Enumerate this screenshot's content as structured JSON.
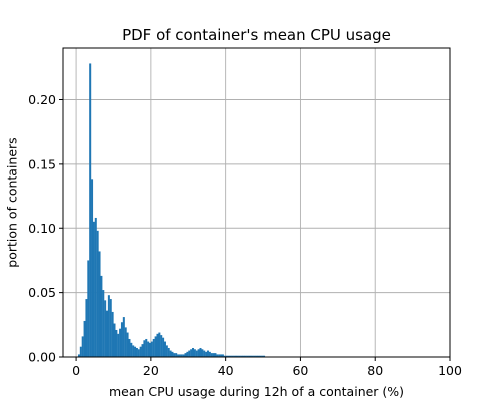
{
  "chart_data": {
    "type": "bar",
    "title": "PDF of container's mean CPU usage",
    "xlabel": "mean CPU usage during 12h of a container (%)",
    "ylabel": "portion of containers",
    "xlim": [
      -3.5,
      100
    ],
    "ylim": [
      0,
      0.24
    ],
    "xticks": [
      0,
      20,
      40,
      60,
      80,
      100
    ],
    "yticks": [
      0.0,
      0.05,
      0.1,
      0.15,
      0.2
    ],
    "xtick_labels": [
      "0",
      "20",
      "40",
      "60",
      "80",
      "100"
    ],
    "ytick_labels": [
      "0.00",
      "0.05",
      "0.10",
      "0.15",
      "0.20"
    ],
    "grid": true,
    "bar_color": "#1f77b4",
    "bin_width": 0.5,
    "x": [
      0.5,
      1.0,
      1.5,
      2.0,
      2.5,
      3.0,
      3.5,
      4.0,
      4.5,
      5.0,
      5.5,
      6.0,
      6.5,
      7.0,
      7.5,
      8.0,
      8.5,
      9.0,
      9.5,
      10.0,
      10.5,
      11.0,
      11.5,
      12.0,
      12.5,
      13.0,
      13.5,
      14.0,
      14.5,
      15.0,
      15.5,
      16.0,
      16.5,
      17.0,
      17.5,
      18.0,
      18.5,
      19.0,
      19.5,
      20.0,
      20.5,
      21.0,
      21.5,
      22.0,
      22.5,
      23.0,
      23.5,
      24.0,
      24.5,
      25.0,
      25.5,
      26.0,
      26.5,
      27.0,
      27.5,
      28.0,
      28.5,
      29.0,
      29.5,
      30.0,
      30.5,
      31.0,
      31.5,
      32.0,
      32.5,
      33.0,
      33.5,
      34.0,
      34.5,
      35.0,
      35.5,
      36.0,
      36.5,
      37.0,
      37.5,
      38.0,
      38.5,
      39.0,
      39.5,
      40.0,
      40.5,
      41.0,
      41.5,
      42.0,
      42.5,
      43.0,
      43.5,
      44.0,
      44.5,
      45.0,
      45.5,
      46.0,
      46.5,
      47.0,
      47.5,
      48.0,
      48.5,
      49.0,
      49.5,
      50.0
    ],
    "values": [
      0.002,
      0.008,
      0.016,
      0.028,
      0.045,
      0.075,
      0.228,
      0.138,
      0.105,
      0.108,
      0.098,
      0.082,
      0.063,
      0.052,
      0.044,
      0.036,
      0.048,
      0.045,
      0.035,
      0.026,
      0.021,
      0.018,
      0.022,
      0.027,
      0.031,
      0.023,
      0.019,
      0.014,
      0.011,
      0.009,
      0.008,
      0.007,
      0.006,
      0.008,
      0.01,
      0.013,
      0.014,
      0.012,
      0.011,
      0.012,
      0.014,
      0.016,
      0.018,
      0.019,
      0.017,
      0.015,
      0.012,
      0.009,
      0.007,
      0.005,
      0.004,
      0.003,
      0.003,
      0.002,
      0.002,
      0.002,
      0.002,
      0.003,
      0.004,
      0.005,
      0.006,
      0.007,
      0.006,
      0.005,
      0.006,
      0.007,
      0.006,
      0.005,
      0.004,
      0.005,
      0.004,
      0.003,
      0.003,
      0.003,
      0.002,
      0.002,
      0.002,
      0.002,
      0.001,
      0.001,
      0.001,
      0.001,
      0.001,
      0.001,
      0.001,
      0.001,
      0.001,
      0.001,
      0.001,
      0.001,
      0.001,
      0.001,
      0.001,
      0.001,
      0.001,
      0.001,
      0.001,
      0.001,
      0.001,
      0.001
    ]
  }
}
